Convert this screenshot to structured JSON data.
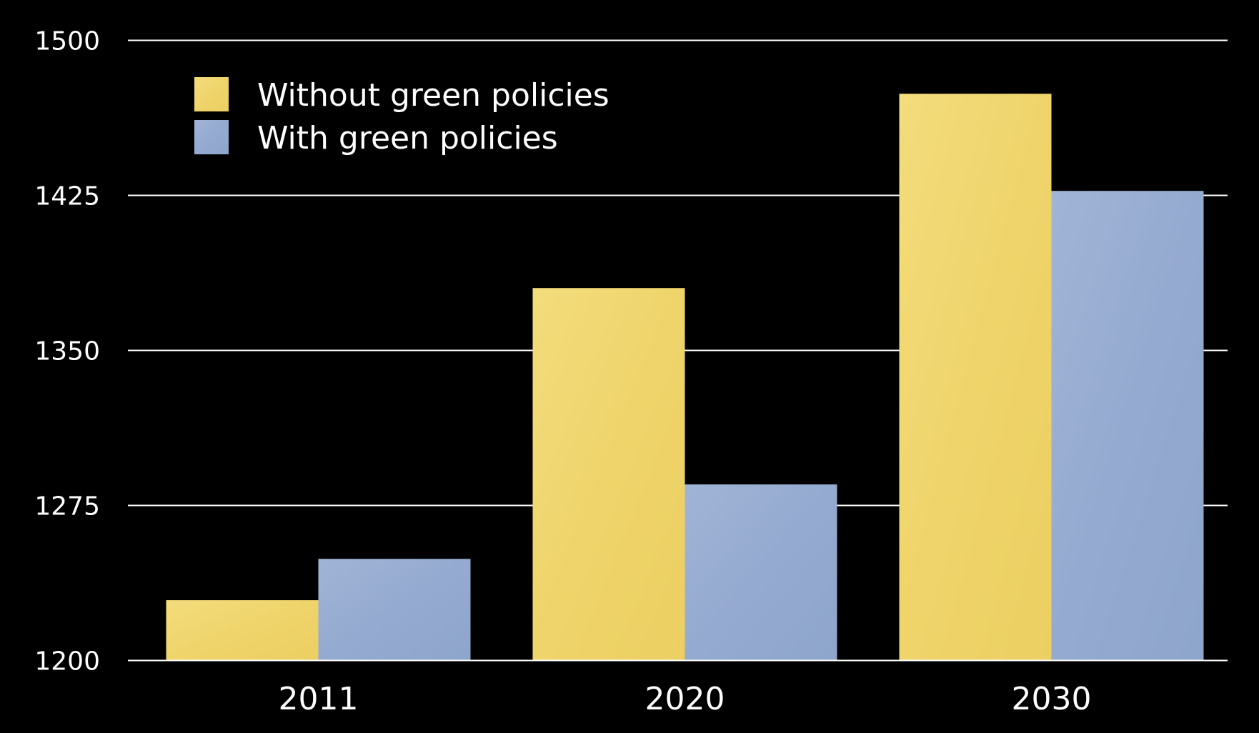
{
  "chart_data": {
    "type": "bar",
    "title": "",
    "xlabel": "",
    "ylabel": "",
    "categories": [
      "2011",
      "2020",
      "2030"
    ],
    "series": [
      {
        "name": "Without green policies",
        "color": "#f0d670",
        "values": [
          1229,
          1380,
          1474
        ]
      },
      {
        "name": "With green policies",
        "color": "#97acd0",
        "values": [
          1249,
          1285,
          1427
        ]
      }
    ],
    "ylim": [
      1200,
      1500
    ],
    "yticks": [
      1200,
      1275,
      1350,
      1425,
      1500
    ],
    "grid": true,
    "legend_position": "top-left"
  }
}
